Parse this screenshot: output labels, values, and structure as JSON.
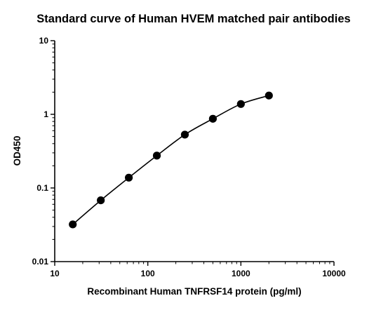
{
  "chart_data": {
    "type": "scatter",
    "title": "Standard curve of Human HVEM matched pair antibodies",
    "xlabel": "Recombinant Human TNFRSF14 protein (pg/ml)",
    "ylabel": "OD450",
    "xscale": "log",
    "yscale": "log",
    "xlim": [
      10,
      10000
    ],
    "ylim": [
      0.01,
      10
    ],
    "x_ticks": [
      "10",
      "100",
      "1000",
      "10000"
    ],
    "y_ticks": [
      "0.01",
      "0.1",
      "1",
      "10"
    ],
    "grid": false,
    "fit_line": true,
    "series": [
      {
        "x": [
          15.625,
          31.25,
          62.5,
          125,
          250,
          500,
          1000,
          2000
        ],
        "y": [
          0.032,
          0.068,
          0.138,
          0.275,
          0.53,
          0.87,
          1.38,
          1.8
        ]
      }
    ]
  }
}
